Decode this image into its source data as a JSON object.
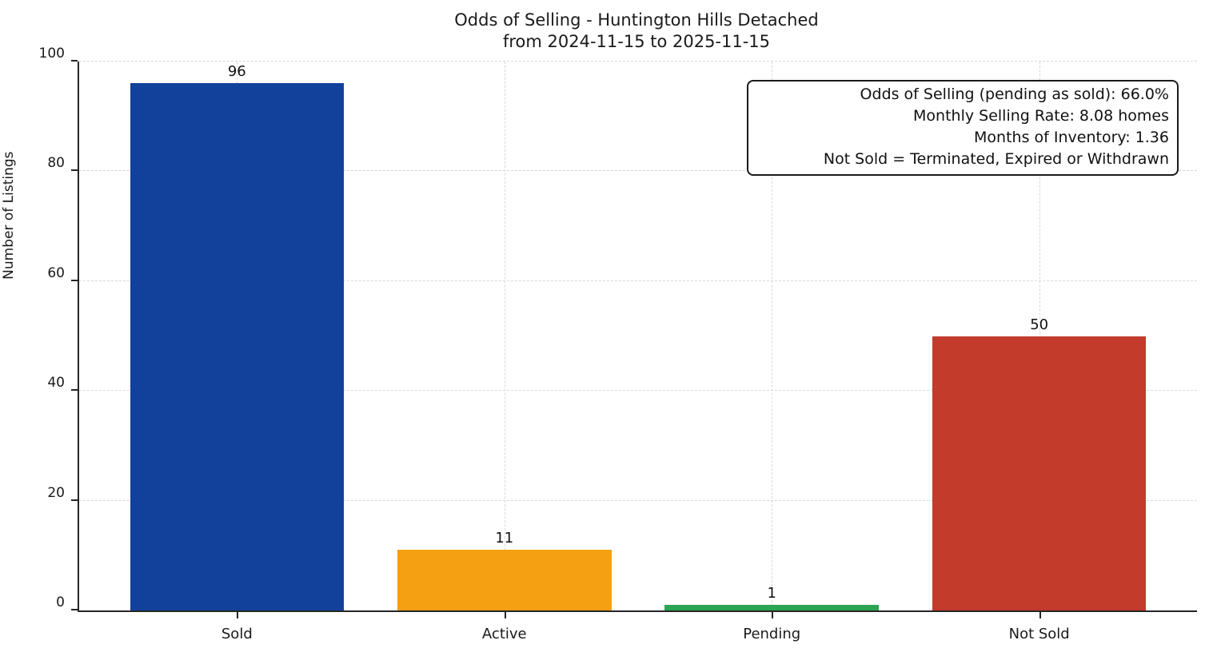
{
  "title": {
    "line1": "Odds of Selling - Huntington Hills Detached",
    "line2": "from 2024-11-15 to 2025-11-15"
  },
  "annotation": {
    "lines": [
      "Odds of Selling (pending as sold): 66.0%",
      "Monthly Selling Rate: 8.08 homes",
      "Months of Inventory: 1.36",
      "Not Sold = Terminated, Expired or Withdrawn"
    ]
  },
  "colors": {
    "spine": "#262626",
    "grid": "#d9d9d9",
    "text": "#1a1a1a"
  },
  "chart_data": {
    "type": "bar",
    "title": "Odds of Selling - Huntington Hills Detached\nfrom 2024-11-15 to 2025-11-15",
    "categories": [
      "Sold",
      "Active",
      "Pending",
      "Not Sold"
    ],
    "values": [
      96,
      11,
      1,
      50
    ],
    "bar_colors": [
      "#12419C",
      "#F4A011",
      "#2CA452",
      "#C23B2B"
    ],
    "bar_labels": [
      "96",
      "11",
      "1",
      "50"
    ],
    "xlabel": "",
    "ylabel": "Number of Listings",
    "ylim": [
      0,
      100
    ],
    "yticks": [
      0,
      20,
      40,
      60,
      80,
      100
    ],
    "xlim": [
      -0.59,
      3.59
    ],
    "bar_width": 0.8,
    "grid": "dashed, both axes",
    "legend": "none",
    "annotation_box": [
      "Odds of Selling (pending as sold): 66.0%",
      "Monthly Selling Rate: 8.08 homes",
      "Months of Inventory: 1.36",
      "Not Sold = Terminated, Expired or Withdrawn"
    ]
  }
}
